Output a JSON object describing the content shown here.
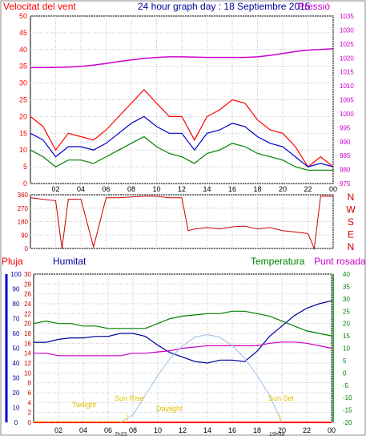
{
  "title": "24 hour graph day : 18 Septiembre 2015",
  "colors": {
    "wind": "#ff0000",
    "gust": "#ff0000",
    "avg_wind": "#0000cc",
    "min_wind": "#008000",
    "pressure": "#cc00cc",
    "direction": "#cc0000",
    "rain": "#ff0000",
    "humidity": "#000099",
    "temperature": "#008000",
    "dewpoint": "#cc00cc",
    "sun": "#a8c8e8",
    "markers": "#ffe000",
    "axis": "#000000",
    "grid": "#c0c0c0"
  },
  "panels": {
    "wind": {
      "label_left": "Velocitat del vent",
      "label_right": "Pressió"
    },
    "direction": {
      "compass": [
        "N",
        "W",
        "S",
        "E",
        "N"
      ]
    },
    "weather": {
      "label_rain": "Pluja",
      "label_humidity": "Humitat",
      "label_temperature": "Temperatura",
      "label_dewpoint": "Punt rosada",
      "annotations": {
        "twilight1": "Twilight",
        "sunrise": "Sun Rise",
        "daylight": "Daylight",
        "sunset": "Sun Set",
        "sunrise_time": "7h33",
        "sunset_time": "19h48"
      }
    }
  },
  "chart_data": [
    {
      "type": "line",
      "title": "24 hour graph day : 18 Septiembre 2015",
      "x_ticks": [
        "02",
        "04",
        "06",
        "08",
        "10",
        "12",
        "14",
        "16",
        "18",
        "20",
        "22",
        "00"
      ],
      "y_left": {
        "label": "Velocitat del vent",
        "ylim": [
          0,
          50
        ],
        "ticks": [
          0,
          5,
          10,
          15,
          20,
          25,
          30,
          35,
          40,
          45,
          50
        ]
      },
      "y_right": {
        "label": "Pressió",
        "ylim": [
          975,
          1035
        ],
        "ticks": [
          975,
          980,
          985,
          990,
          995,
          1000,
          1005,
          1010,
          1015,
          1020,
          1025,
          1030,
          1035
        ]
      },
      "x": [
        0,
        1,
        2,
        3,
        4,
        5,
        6,
        7,
        8,
        9,
        10,
        11,
        12,
        13,
        14,
        15,
        16,
        17,
        18,
        19,
        20,
        21,
        22,
        23,
        24
      ],
      "series": [
        {
          "name": "gust",
          "axis": "left",
          "values": [
            20,
            17,
            10,
            15,
            14,
            13,
            16,
            20,
            24,
            28,
            24,
            20,
            20,
            13,
            20,
            22,
            25,
            24,
            19,
            16,
            15,
            11,
            5,
            8,
            5
          ]
        },
        {
          "name": "avg",
          "axis": "left",
          "values": [
            15,
            13,
            8,
            11,
            11,
            10,
            12,
            15,
            18,
            20,
            17,
            15,
            15,
            10,
            15,
            16,
            18,
            17,
            14,
            12,
            11,
            8,
            5,
            6,
            5
          ]
        },
        {
          "name": "min",
          "axis": "left",
          "values": [
            10,
            8,
            5,
            7,
            7,
            6,
            8,
            10,
            12,
            14,
            11,
            9,
            8,
            6,
            9,
            10,
            12,
            11,
            9,
            8,
            7,
            5,
            4,
            4,
            4
          ]
        },
        {
          "name": "pressure",
          "axis": "right",
          "values": [
            1016.5,
            1016.5,
            1016.6,
            1016.7,
            1017,
            1017.4,
            1018,
            1018.7,
            1019.3,
            1019.8,
            1020.2,
            1020.4,
            1020.4,
            1020.3,
            1020.2,
            1020.2,
            1020.2,
            1020.2,
            1020.4,
            1020.9,
            1021.6,
            1022.3,
            1022.8,
            1023,
            1023.3
          ]
        }
      ]
    },
    {
      "type": "scatter",
      "ylim": [
        0,
        360
      ],
      "y_ticks": [
        0,
        90,
        180,
        270,
        360
      ],
      "y_labels": [
        "0",
        "90",
        "180",
        "270",
        "360"
      ],
      "x": [
        0,
        1,
        2,
        2.5,
        3,
        4,
        5,
        6,
        7,
        8,
        9,
        10,
        11,
        12,
        12.5,
        13,
        14,
        15,
        16,
        17,
        18,
        19,
        20,
        21,
        22,
        22.5,
        23,
        24
      ],
      "values": [
        340,
        330,
        320,
        0,
        330,
        330,
        10,
        340,
        340,
        345,
        350,
        350,
        340,
        340,
        120,
        130,
        140,
        130,
        145,
        150,
        130,
        140,
        120,
        110,
        100,
        0,
        350,
        350
      ]
    },
    {
      "type": "line",
      "x_ticks": [
        "02",
        "04",
        "06",
        "08",
        "10",
        "12",
        "14",
        "16",
        "18",
        "20",
        "22",
        "00"
      ],
      "annotations_x": {
        "sunrise": 7.55,
        "sunset": 19.8
      },
      "y_rain": {
        "ylim": [
          0,
          30
        ],
        "ticks": [
          0,
          2,
          4,
          6,
          8,
          10,
          12,
          14,
          16,
          18,
          20,
          22,
          24,
          26,
          28,
          30
        ]
      },
      "y_humidity": {
        "ylim": [
          0,
          100
        ],
        "ticks": [
          0,
          10,
          20,
          30,
          40,
          50,
          60,
          70,
          80,
          90,
          100
        ]
      },
      "y_temp": {
        "ylim": [
          -20,
          40
        ],
        "ticks": [
          -20,
          -15,
          -10,
          -5,
          0,
          5,
          10,
          15,
          20,
          25,
          30,
          35,
          40
        ]
      },
      "x": [
        0,
        1,
        2,
        3,
        4,
        5,
        6,
        7,
        8,
        9,
        10,
        11,
        12,
        13,
        14,
        15,
        16,
        17,
        18,
        19,
        20,
        21,
        22,
        23,
        24
      ],
      "series": [
        {
          "name": "rain",
          "axis": "rain",
          "values": [
            0,
            0,
            0,
            0,
            0,
            0,
            0,
            0,
            0,
            0,
            0,
            0,
            0,
            0,
            0,
            0,
            0,
            0,
            0,
            0,
            0,
            0,
            0,
            0,
            0
          ]
        },
        {
          "name": "humidity",
          "axis": "humidity",
          "values": [
            54,
            54,
            56,
            57,
            57,
            58,
            58,
            60,
            60,
            58,
            52,
            47,
            44,
            41,
            40,
            42,
            42,
            41,
            48,
            58,
            65,
            72,
            77,
            80,
            82
          ]
        },
        {
          "name": "temperature",
          "axis": "temp",
          "values": [
            20,
            21,
            20,
            20,
            19,
            19,
            18,
            18,
            18,
            18,
            20,
            22,
            23,
            23.5,
            24,
            24,
            25,
            25,
            24,
            23,
            21,
            19,
            17,
            16,
            15
          ]
        },
        {
          "name": "dewpoint",
          "axis": "temp",
          "values": [
            8,
            8,
            7,
            7,
            7,
            7,
            7,
            7,
            8,
            8,
            8.5,
            9,
            10,
            10.5,
            11,
            11,
            11,
            11,
            11,
            12,
            12.5,
            12.5,
            12,
            11,
            10
          ]
        },
        {
          "name": "sun",
          "axis": "temp",
          "values": [
            null,
            null,
            null,
            null,
            null,
            null,
            null,
            -20,
            -17,
            -9,
            -1,
            6,
            11,
            14.5,
            15.5,
            14.5,
            11,
            6,
            -1,
            -9,
            -20,
            null,
            null,
            null,
            null
          ]
        }
      ]
    }
  ]
}
